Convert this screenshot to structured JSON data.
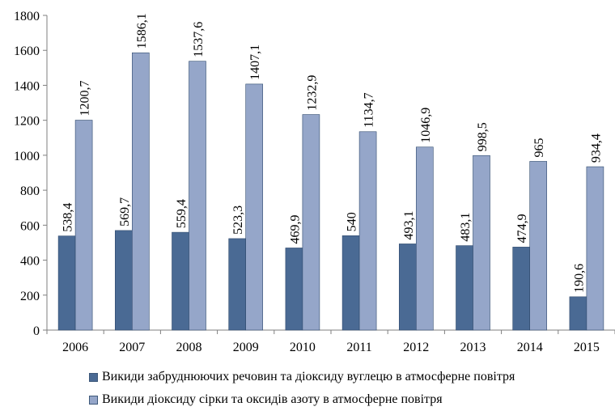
{
  "chart_data": {
    "type": "bar",
    "title": "",
    "xlabel": "",
    "ylabel": "",
    "categories": [
      "2006",
      "2007",
      "2008",
      "2009",
      "2010",
      "2011",
      "2012",
      "2013",
      "2014",
      "2015"
    ],
    "series": [
      {
        "name": "Викиди забруднюючих речовин та діоксиду вуглецю в атмосферне повітря",
        "color": "#4a6a94",
        "values": [
          538.4,
          569.7,
          559.4,
          523.3,
          469.9,
          540,
          493.1,
          483.1,
          474.9,
          190.6
        ],
        "labels": [
          "538,4",
          "569,7",
          "559,4",
          "523,3",
          "469,9",
          "540",
          "493,1",
          "483,1",
          "474,9",
          "190,6"
        ]
      },
      {
        "name": "Викиди діоксиду сірки та оксидів азоту в атмосферне повітря",
        "color": "#95a6c9",
        "values": [
          1200.7,
          1586.1,
          1537.6,
          1407.1,
          1232.9,
          1134.7,
          1046.9,
          998.5,
          965,
          934.4
        ],
        "labels": [
          "1200,7",
          "1586,1",
          "1537,6",
          "1407,1",
          "1232,9",
          "1134,7",
          "1046,9",
          "998,5",
          "965",
          "934,4"
        ]
      }
    ],
    "ylim": [
      0,
      1800
    ],
    "yticks": [
      0,
      200,
      400,
      600,
      800,
      1000,
      1200,
      1400,
      1600,
      1800
    ],
    "grid": false,
    "legend_position": "bottom"
  }
}
